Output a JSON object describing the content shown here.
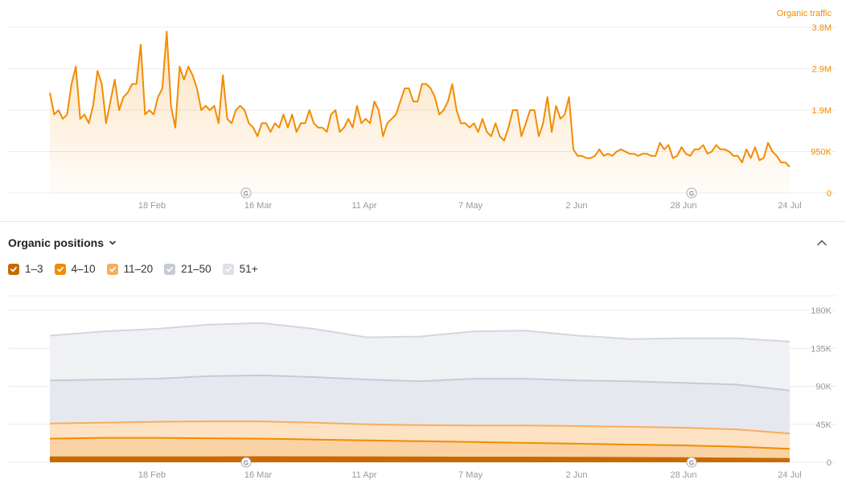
{
  "traffic_chart": {
    "series_label": "Organic traffic",
    "line_color": "#f28c00",
    "y_ticks": [
      "3.8M",
      "2.9M",
      "1.9M",
      "950K",
      "0"
    ],
    "x_ticks": [
      "18 Feb",
      "16 Mar",
      "11 Apr",
      "7 May",
      "2 Jun",
      "28 Jun",
      "24 Jul"
    ],
    "google_update_icon": "google-update-icon"
  },
  "positions_section": {
    "title": "Organic positions",
    "dropdown_icon": "chevron-down-icon",
    "collapse_icon": "chevron-up-icon",
    "legend": [
      {
        "label": "1–3",
        "color": "#c86a00",
        "checked": true
      },
      {
        "label": "4–10",
        "color": "#f28c00",
        "checked": true
      },
      {
        "label": "11–20",
        "color": "#f7ad5e",
        "checked": true
      },
      {
        "label": "21–50",
        "color": "#c6cbd6",
        "checked": true
      },
      {
        "label": "51+",
        "color": "#dde0e7",
        "checked": true
      }
    ],
    "y_ticks": [
      "180K",
      "135K",
      "90K",
      "45K",
      "0"
    ],
    "x_ticks": [
      "18 Feb",
      "16 Mar",
      "11 Apr",
      "7 May",
      "2 Jun",
      "28 Jun",
      "24 Jul"
    ]
  },
  "chart_data": [
    {
      "type": "area",
      "ylabel": "Organic traffic",
      "ylim": [
        0,
        3800000
      ],
      "x_ticks": [
        "18 Feb",
        "16 Mar",
        "11 Apr",
        "7 May",
        "2 Jun",
        "28 Jun",
        "24 Jul"
      ],
      "series": [
        {
          "name": "Organic traffic",
          "values": [
            2300000,
            1800000,
            1900000,
            1700000,
            1800000,
            2500000,
            2900000,
            1700000,
            1800000,
            1600000,
            2000000,
            2800000,
            2500000,
            1600000,
            2100000,
            2600000,
            1900000,
            2200000,
            2300000,
            2500000,
            2500000,
            3400000,
            1800000,
            1900000,
            1800000,
            2200000,
            2400000,
            3700000,
            2000000,
            1500000,
            2900000,
            2600000,
            2900000,
            2700000,
            2400000,
            1900000,
            2000000,
            1900000,
            2000000,
            1600000,
            2700000,
            1700000,
            1600000,
            1900000,
            2000000,
            1900000,
            1600000,
            1500000,
            1300000,
            1600000,
            1600000,
            1400000,
            1600000,
            1500000,
            1800000,
            1500000,
            1800000,
            1400000,
            1600000,
            1600000,
            1900000,
            1600000,
            1500000,
            1500000,
            1400000,
            1800000,
            1900000,
            1400000,
            1500000,
            1700000,
            1500000,
            2000000,
            1600000,
            1700000,
            1600000,
            2100000,
            1900000,
            1300000,
            1600000,
            1700000,
            1800000,
            2100000,
            2400000,
            2400000,
            2100000,
            2100000,
            2500000,
            2500000,
            2400000,
            2200000,
            1800000,
            1900000,
            2100000,
            2500000,
            1900000,
            1600000,
            1600000,
            1500000,
            1600000,
            1400000,
            1700000,
            1400000,
            1300000,
            1600000,
            1300000,
            1200000,
            1500000,
            1900000,
            1900000,
            1300000,
            1600000,
            1900000,
            1900000,
            1300000,
            1600000,
            2200000,
            1400000,
            2000000,
            1700000,
            1800000,
            2200000,
            1000000,
            850000,
            850000,
            800000,
            800000,
            850000,
            1000000,
            850000,
            900000,
            850000,
            950000,
            1000000,
            950000,
            900000,
            900000,
            850000,
            900000,
            900000,
            850000,
            850000,
            1150000,
            1000000,
            1100000,
            800000,
            850000,
            1050000,
            900000,
            850000,
            1000000,
            1000000,
            1100000,
            900000,
            950000,
            1100000,
            1000000,
            1000000,
            950000,
            850000,
            850000,
            700000,
            1000000,
            800000,
            1050000,
            750000,
            800000,
            1150000,
            950000,
            850000,
            700000,
            700000,
            600000
          ]
        }
      ]
    },
    {
      "type": "area",
      "ylabel": "Organic positions",
      "ylim": [
        0,
        180000
      ],
      "x_ticks": [
        "18 Feb",
        "16 Mar",
        "11 Apr",
        "7 May",
        "2 Jun",
        "28 Jun",
        "24 Jul"
      ],
      "stacked": true,
      "series": [
        {
          "name": "1–3",
          "values": [
            6000,
            6000,
            6000,
            6000,
            6200,
            6100,
            6000,
            5800,
            5600,
            5600,
            5500,
            5200,
            5000,
            4500,
            4000
          ]
        },
        {
          "name": "4–10",
          "values": [
            28000,
            29000,
            29000,
            28500,
            28000,
            27000,
            26000,
            25000,
            24000,
            23000,
            22000,
            21000,
            20000,
            18500,
            16000
          ]
        },
        {
          "name": "11–20",
          "values": [
            46000,
            47000,
            48000,
            48500,
            48500,
            47000,
            45000,
            44000,
            43500,
            43500,
            43000,
            42000,
            41000,
            39000,
            34000
          ]
        },
        {
          "name": "21–50",
          "values": [
            97000,
            98000,
            99000,
            102000,
            103000,
            101000,
            98000,
            96000,
            99000,
            99000,
            97000,
            96000,
            94000,
            92000,
            85000
          ]
        },
        {
          "name": "51+",
          "values": [
            150000,
            155000,
            158000,
            163000,
            165000,
            158000,
            148000,
            149000,
            155000,
            156000,
            150000,
            146000,
            147000,
            147000,
            143000
          ]
        }
      ]
    }
  ]
}
